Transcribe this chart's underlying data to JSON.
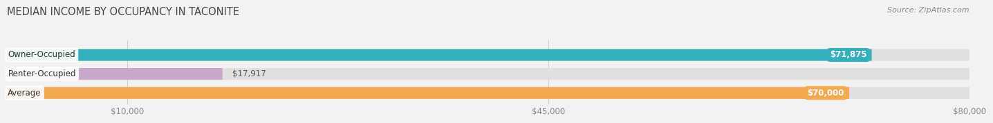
{
  "title": "MEDIAN INCOME BY OCCUPANCY IN TACONITE",
  "source": "Source: ZipAtlas.com",
  "categories": [
    "Owner-Occupied",
    "Renter-Occupied",
    "Average"
  ],
  "values": [
    71875,
    17917,
    70000
  ],
  "labels": [
    "$71,875",
    "$17,917",
    "$70,000"
  ],
  "bar_colors": [
    "#35AFBB",
    "#C9A8CC",
    "#F5A84C"
  ],
  "background_color": "#f2f2f2",
  "bar_bg_color": "#e0e0e0",
  "xmin": 0,
  "xmax": 80000,
  "xticks": [
    10000,
    45000,
    80000
  ],
  "xtick_labels": [
    "$10,000",
    "$45,000",
    "$80,000"
  ],
  "title_fontsize": 10.5,
  "source_fontsize": 8,
  "label_fontsize": 8.5,
  "category_fontsize": 8.5,
  "value_label_fontsize": 8.5
}
